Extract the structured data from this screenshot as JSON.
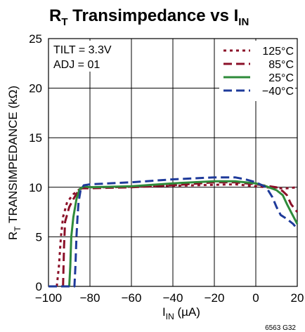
{
  "chart_data": {
    "type": "line",
    "title": {
      "main": "R",
      "main_sub": "T",
      "middle": " Transimpedance vs I",
      "end_sub": "IN"
    },
    "xlabel": {
      "main": "I",
      "sub": "IN",
      "rest": " (µA)"
    },
    "ylabel": {
      "main": "R",
      "sub": "T",
      "rest": " TRANSIMPEDANCE (kΩ)"
    },
    "xlim": [
      -100,
      20
    ],
    "ylim": [
      0,
      25
    ],
    "x_ticks": [
      -100,
      -80,
      -60,
      -40,
      -20,
      0,
      20
    ],
    "x_tick_labels": [
      "−100",
      "−80",
      "−60",
      "−40",
      "−20",
      "0",
      "20"
    ],
    "y_ticks": [
      0,
      5,
      10,
      15,
      20,
      25
    ],
    "y_tick_labels": [
      "0",
      "5",
      "10",
      "15",
      "20",
      "25"
    ],
    "grid": true,
    "annotations": [
      "TILT = 3.3V",
      "ADJ = 01"
    ],
    "legend_position": "top-right",
    "figure_code": "6563 G32",
    "series": [
      {
        "name": "125°C",
        "color": "#8b1028",
        "dash": "dotted",
        "points": [
          [
            -96,
            0
          ],
          [
            -95,
            2
          ],
          [
            -94,
            5
          ],
          [
            -93,
            7
          ],
          [
            -91,
            8.5
          ],
          [
            -88,
            9.3
          ],
          [
            -85,
            9.8
          ],
          [
            -82,
            10.0
          ],
          [
            -70,
            10.0
          ],
          [
            -50,
            10.1
          ],
          [
            -30,
            10.2
          ],
          [
            -10,
            10.3
          ],
          [
            0,
            10.1
          ],
          [
            10,
            9.9
          ],
          [
            15,
            9.9
          ],
          [
            20,
            10.0
          ]
        ]
      },
      {
        "name": "85°C",
        "color": "#8b1028",
        "dash": "dashed",
        "points": [
          [
            -93,
            0
          ],
          [
            -92.5,
            4
          ],
          [
            -92,
            6.5
          ],
          [
            -90,
            8
          ],
          [
            -88,
            8.8
          ],
          [
            -86,
            9.5
          ],
          [
            -84,
            9.9
          ],
          [
            -80,
            9.9
          ],
          [
            -60,
            10.0
          ],
          [
            -40,
            10.2
          ],
          [
            -20,
            10.5
          ],
          [
            -10,
            10.5
          ],
          [
            0,
            10.3
          ],
          [
            10,
            10.0
          ],
          [
            13,
            9.6
          ],
          [
            15,
            9.2
          ],
          [
            17,
            8.3
          ],
          [
            20,
            7.5
          ]
        ]
      },
      {
        "name": "25°C",
        "color": "#2e8b3a",
        "dash": "solid",
        "points": [
          [
            -90,
            0
          ],
          [
            -89.5,
            2
          ],
          [
            -89,
            5
          ],
          [
            -88,
            7
          ],
          [
            -86.5,
            8.8
          ],
          [
            -85,
            9.8
          ],
          [
            -83,
            10.1
          ],
          [
            -80,
            10.0
          ],
          [
            -60,
            10.1
          ],
          [
            -40,
            10.4
          ],
          [
            -20,
            10.6
          ],
          [
            -10,
            10.6
          ],
          [
            0,
            10.4
          ],
          [
            5,
            10.1
          ],
          [
            10,
            9.7
          ],
          [
            13,
            9.2
          ],
          [
            15,
            8.3
          ],
          [
            17,
            7.5
          ],
          [
            20,
            6.3
          ]
        ]
      },
      {
        "name": "−40°C",
        "color": "#1e3a9a",
        "dash": "dashed",
        "points": [
          [
            -100,
            0
          ],
          [
            -87.5,
            0
          ],
          [
            -87,
            2
          ],
          [
            -86.5,
            5
          ],
          [
            -86,
            7
          ],
          [
            -85.5,
            8.5
          ],
          [
            -84.5,
            9.7
          ],
          [
            -83,
            10.2
          ],
          [
            -80,
            10.3
          ],
          [
            -60,
            10.5
          ],
          [
            -40,
            10.8
          ],
          [
            -20,
            11.0
          ],
          [
            -10,
            11.0
          ],
          [
            -5,
            10.8
          ],
          [
            0,
            10.5
          ],
          [
            5,
            10.0
          ],
          [
            8,
            9.0
          ],
          [
            10,
            8.0
          ],
          [
            12,
            7.2
          ],
          [
            15,
            6.8
          ],
          [
            18,
            6.3
          ],
          [
            20,
            5.8
          ]
        ]
      }
    ]
  }
}
